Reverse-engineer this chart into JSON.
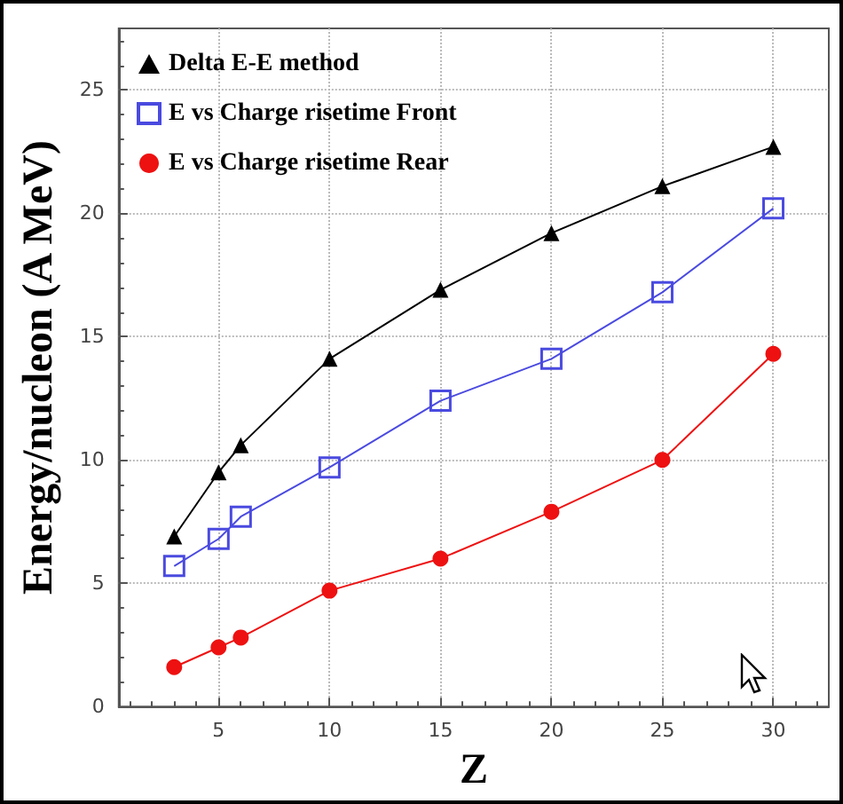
{
  "chart_data": {
    "type": "line",
    "xlabel": "Z",
    "ylabel": "Energy/nucleon (A MeV)",
    "x": [
      3,
      5,
      6,
      10,
      15,
      20,
      25,
      30
    ],
    "series": [
      {
        "name": "Delta E-E method",
        "color": "#000000",
        "marker": "triangle",
        "values": [
          6.9,
          9.5,
          10.6,
          14.1,
          16.9,
          19.2,
          21.1,
          22.7
        ]
      },
      {
        "name": "E vs Charge risetime Front",
        "color": "#4a4ae0",
        "marker": "square",
        "values": [
          5.7,
          6.8,
          7.7,
          9.7,
          12.4,
          14.1,
          16.8,
          20.2
        ]
      },
      {
        "name": "E vs Charge risetime Rear",
        "color": "#ee1111",
        "marker": "circle",
        "values": [
          1.6,
          2.4,
          2.8,
          4.7,
          6.0,
          7.9,
          10.0,
          14.3
        ]
      }
    ],
    "xlim": [
      0.5,
      32.5
    ],
    "xticks": [
      5,
      10,
      15,
      20,
      25,
      30
    ],
    "ylim": [
      0,
      27.5
    ],
    "yticks": [
      0,
      5,
      10,
      15,
      20,
      25
    ],
    "grid": true,
    "legend": "top left"
  }
}
